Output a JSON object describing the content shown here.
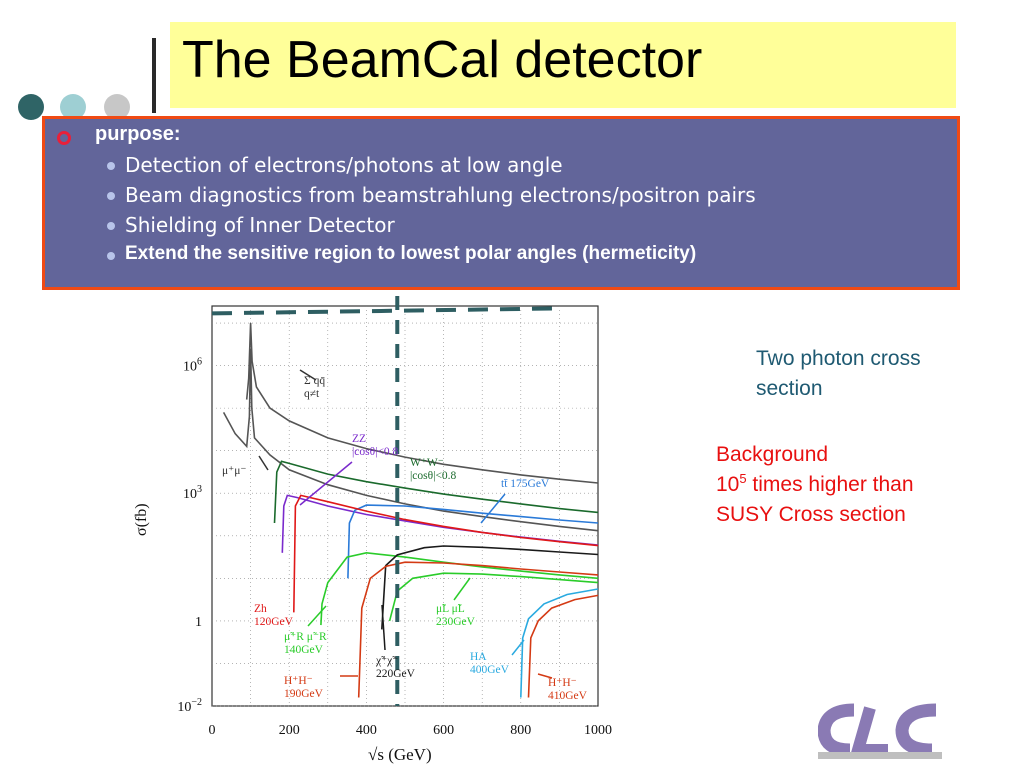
{
  "slide": {
    "title": "The BeamCal detector",
    "purpose_label": "purpose:",
    "bullets": [
      {
        "text": "Detection of electrons/photons at low angle",
        "bold": false
      },
      {
        "text": "Beam diagnostics from beamstrahlung electrons/positron pairs",
        "bold": false
      },
      {
        "text": "Shielding of Inner Detector",
        "bold": false
      },
      {
        "text": "Extend the sensitive region to lowest polar angles  (hermeticity)",
        "bold": true
      }
    ],
    "note_two_photon": [
      "Two photon cross",
      "section"
    ],
    "note_background": {
      "line1": "Background",
      "line2_prefix": "10",
      "line2_sup": "5",
      "line2_suffix": " times higher than",
      "line3": "SUSY Cross section"
    },
    "logo_letters": "CLC"
  },
  "colors": {
    "title_bg": "#ffff99",
    "box_bg": "#62659a",
    "box_border": "#f04a14",
    "dot1": "#2f6466",
    "dot2": "#9ecfd3",
    "dot3": "#c7c7c7",
    "teal_note": "#1f5a72",
    "red_note": "#e81010",
    "dashed": "#2e5e62"
  },
  "chart_data": {
    "type": "line",
    "title": "",
    "xlabel": "√s (GeV)",
    "ylabel": "σ(fb)",
    "xlim": [
      0,
      1000
    ],
    "ylim_log10": [
      -2,
      7.4
    ],
    "yscale": "log",
    "x_ticks": [
      "0",
      "200",
      "400",
      "600",
      "800",
      "1000"
    ],
    "y_ticks": [
      {
        "exp": 6,
        "label": "10",
        "sup": "6"
      },
      {
        "exp": 3,
        "label": "10",
        "sup": "3"
      },
      {
        "exp": 0,
        "label": "1",
        "sup": ""
      },
      {
        "exp": -2,
        "label": "10",
        "sup": "−2"
      }
    ],
    "grid": true,
    "dashed_lines": {
      "horizontal_log10": 7.25,
      "vertical_x": 480
    },
    "series": [
      {
        "name": "Σ qq̄ (q≠t)",
        "color": "#555555",
        "points": [
          [
            90,
            5.2
          ],
          [
            95,
            5.7
          ],
          [
            100,
            7.0
          ],
          [
            104,
            6.1
          ],
          [
            115,
            5.5
          ],
          [
            150,
            5.0
          ],
          [
            200,
            4.7
          ],
          [
            300,
            4.3
          ],
          [
            400,
            4.05
          ],
          [
            500,
            3.85
          ],
          [
            600,
            3.68
          ],
          [
            700,
            3.55
          ],
          [
            800,
            3.43
          ],
          [
            900,
            3.33
          ],
          [
            1000,
            3.24
          ]
        ]
      },
      {
        "name": "μ⁺μ⁻",
        "color": "#555555",
        "points": [
          [
            30,
            4.9
          ],
          [
            60,
            4.4
          ],
          [
            90,
            4.1
          ],
          [
            97,
            4.8
          ],
          [
            100,
            6.4
          ],
          [
            103,
            5.0
          ],
          [
            110,
            4.3
          ],
          [
            150,
            3.9
          ],
          [
            200,
            3.55
          ],
          [
            300,
            3.2
          ],
          [
            400,
            2.95
          ],
          [
            500,
            2.75
          ],
          [
            600,
            2.58
          ],
          [
            700,
            2.45
          ],
          [
            800,
            2.33
          ],
          [
            900,
            2.22
          ],
          [
            1000,
            2.12
          ]
        ]
      },
      {
        "name": "W⁺W⁻ |cosθ|<0.8",
        "color": "#1a6a2c",
        "points": [
          [
            162,
            2.3
          ],
          [
            168,
            3.5
          ],
          [
            180,
            3.75
          ],
          [
            200,
            3.7
          ],
          [
            300,
            3.45
          ],
          [
            400,
            3.27
          ],
          [
            500,
            3.12
          ],
          [
            600,
            2.98
          ],
          [
            700,
            2.86
          ],
          [
            800,
            2.75
          ],
          [
            900,
            2.64
          ],
          [
            1000,
            2.55
          ]
        ]
      },
      {
        "name": "ZZ |cosθ|<0.8",
        "color": "#7a2acc",
        "points": [
          [
            182,
            1.6
          ],
          [
            186,
            2.7
          ],
          [
            195,
            2.95
          ],
          [
            220,
            2.9
          ],
          [
            300,
            2.7
          ],
          [
            400,
            2.5
          ],
          [
            500,
            2.35
          ],
          [
            600,
            2.2
          ],
          [
            700,
            2.08
          ],
          [
            800,
            1.97
          ],
          [
            900,
            1.87
          ],
          [
            1000,
            1.78
          ]
        ]
      },
      {
        "name": "tt̄ 175GeV",
        "color": "#2a7ad8",
        "points": [
          [
            352,
            1.0
          ],
          [
            356,
            2.3
          ],
          [
            370,
            2.6
          ],
          [
            400,
            2.72
          ],
          [
            500,
            2.7
          ],
          [
            600,
            2.62
          ],
          [
            700,
            2.53
          ],
          [
            800,
            2.45
          ],
          [
            900,
            2.37
          ],
          [
            1000,
            2.3
          ]
        ]
      },
      {
        "name": "Zh 120GeV",
        "color": "#e01818",
        "points": [
          [
            212,
            0.2
          ],
          [
            216,
            2.7
          ],
          [
            230,
            2.95
          ],
          [
            300,
            2.8
          ],
          [
            400,
            2.58
          ],
          [
            500,
            2.38
          ],
          [
            600,
            2.22
          ],
          [
            700,
            2.08
          ],
          [
            800,
            1.96
          ],
          [
            900,
            1.86
          ],
          [
            1000,
            1.77
          ]
        ]
      },
      {
        "name": "μ̃⁺R μ̃⁻R 140GeV",
        "color": "#2acc2a",
        "points": [
          [
            282,
            -0.1
          ],
          [
            285,
            0.4
          ],
          [
            300,
            0.9
          ],
          [
            350,
            1.5
          ],
          [
            400,
            1.6
          ],
          [
            500,
            1.5
          ],
          [
            600,
            1.38
          ],
          [
            700,
            1.27
          ],
          [
            800,
            1.17
          ],
          [
            900,
            1.08
          ],
          [
            1000,
            1.0
          ]
        ]
      },
      {
        "name": "μ̃⁺L μ̃⁻L 230GeV",
        "color": "#2acc2a",
        "points": [
          [
            460,
            0.0
          ],
          [
            480,
            0.7
          ],
          [
            520,
            1.0
          ],
          [
            600,
            1.12
          ],
          [
            700,
            1.1
          ],
          [
            800,
            1.04
          ],
          [
            900,
            0.97
          ],
          [
            1000,
            0.9
          ]
        ]
      },
      {
        "name": "χ̃⁺χ̃⁻ 220GeV",
        "color": "#1a1a1a",
        "points": [
          [
            440,
            -0.2
          ],
          [
            450,
            1.3
          ],
          [
            480,
            1.55
          ],
          [
            550,
            1.72
          ],
          [
            600,
            1.76
          ],
          [
            700,
            1.73
          ],
          [
            800,
            1.68
          ],
          [
            900,
            1.62
          ],
          [
            1000,
            1.56
          ]
        ]
      },
      {
        "name": "H⁺H⁻ 190GeV",
        "color": "#d43a14",
        "points": [
          [
            380,
            -1.8
          ],
          [
            388,
            0.3
          ],
          [
            410,
            1.0
          ],
          [
            450,
            1.28
          ],
          [
            500,
            1.38
          ],
          [
            600,
            1.36
          ],
          [
            700,
            1.3
          ],
          [
            800,
            1.22
          ],
          [
            900,
            1.15
          ],
          [
            1000,
            1.08
          ]
        ]
      },
      {
        "name": "HA 400GeV",
        "color": "#2aaae0",
        "points": [
          [
            800,
            -1.8
          ],
          [
            805,
            -0.4
          ],
          [
            820,
            0.05
          ],
          [
            860,
            0.4
          ],
          [
            920,
            0.62
          ],
          [
            1000,
            0.75
          ]
        ]
      },
      {
        "name": "H⁺H⁻ 410GeV",
        "color": "#d43a14",
        "points": [
          [
            820,
            -1.8
          ],
          [
            826,
            -0.4
          ],
          [
            845,
            0.0
          ],
          [
            880,
            0.3
          ],
          [
            940,
            0.5
          ],
          [
            1000,
            0.6
          ]
        ]
      }
    ],
    "annotations": [
      {
        "lines": [
          "Σ qq̄",
          "q≠t"
        ],
        "color": "#333333"
      },
      {
        "lines": [
          "μ⁺μ⁻"
        ],
        "color": "#333333"
      },
      {
        "lines": [
          "ZZ",
          "|cosθ|<0.8"
        ],
        "color": "#7a2acc"
      },
      {
        "lines": [
          "W⁺W⁻",
          "|cosθ|<0.8"
        ],
        "color": "#1a6a2c"
      },
      {
        "lines": [
          "tt̄ 175GeV"
        ],
        "color": "#2a7ad8"
      },
      {
        "lines": [
          "Zh",
          "120GeV"
        ],
        "color": "#e01818"
      },
      {
        "lines": [
          "μ̃⁺R μ̃⁻R",
          "140GeV"
        ],
        "color": "#2acc2a"
      },
      {
        "lines": [
          "μ̃L μ̃L",
          "230GeV"
        ],
        "color": "#2acc2a"
      },
      {
        "lines": [
          "χ̃⁺χ̃⁻",
          "220GeV"
        ],
        "color": "#1a1a1a"
      },
      {
        "lines": [
          "H⁺H⁻",
          "190GeV"
        ],
        "color": "#d43a14"
      },
      {
        "lines": [
          "HA",
          "400GeV"
        ],
        "color": "#2aaae0"
      },
      {
        "lines": [
          "H⁺H⁻",
          "410GeV"
        ],
        "color": "#d43a14"
      }
    ]
  }
}
